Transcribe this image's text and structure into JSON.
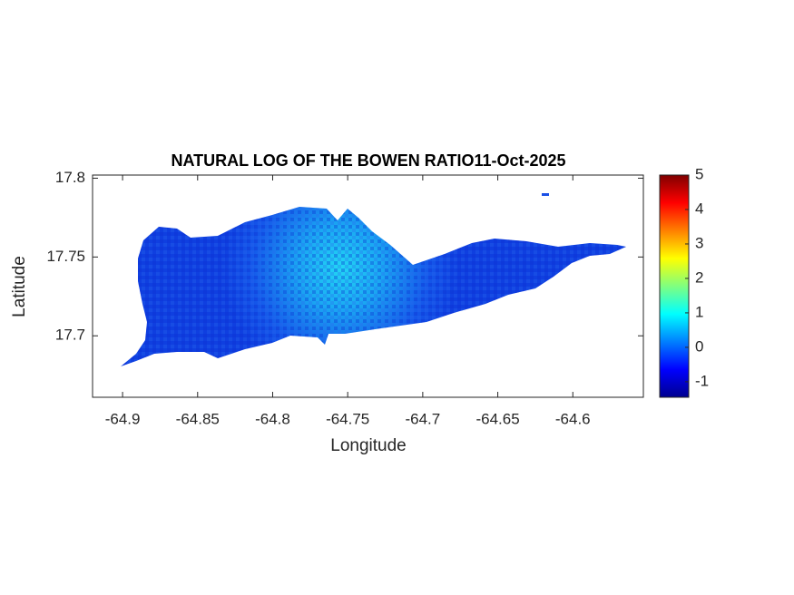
{
  "chart_data": {
    "type": "map",
    "title": "NATURAL LOG OF THE BOWEN RATIO11-Oct-2025",
    "x_label": "Longitude",
    "y_label": "Latitude",
    "xlim": [
      -64.92,
      -64.553
    ],
    "xticks": [
      -64.9,
      -64.85,
      -64.8,
      -64.75,
      -64.7,
      -64.65,
      -64.6
    ],
    "ylim": [
      17.661,
      17.802
    ],
    "yticks": [
      17.7,
      17.75,
      17.8
    ],
    "colorbar": {
      "colormap": "jet",
      "lim": [
        -1.45,
        5
      ],
      "ticks": [
        -1,
        0,
        1,
        2,
        3,
        4,
        5
      ]
    }
  }
}
